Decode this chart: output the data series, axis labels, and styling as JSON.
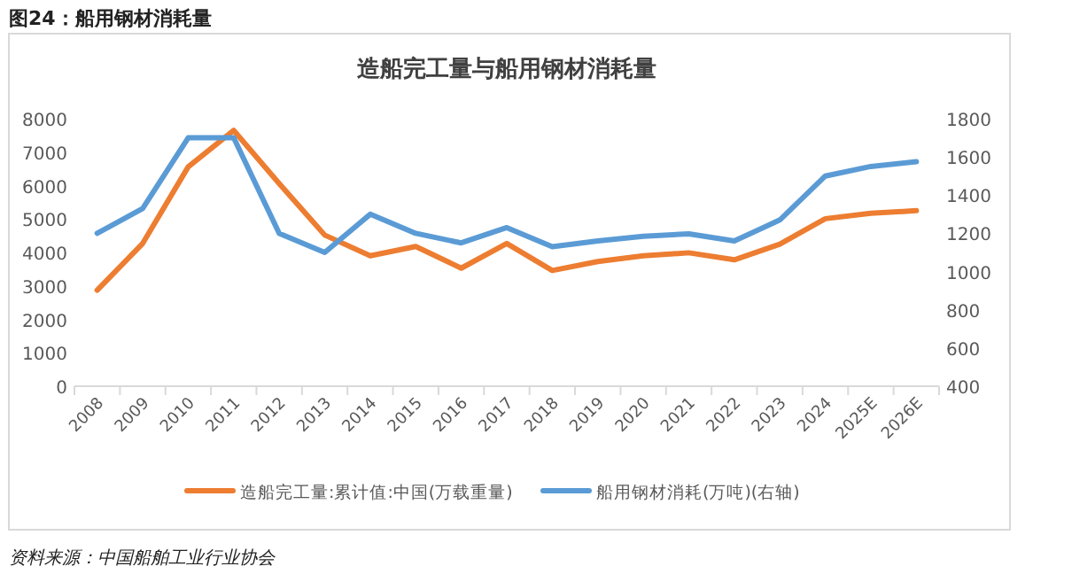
{
  "chart_data": {
    "type": "line",
    "title": "造船完工量与船用钢材消耗量",
    "subtitle": "图24：船用钢材消耗量",
    "categories": [
      "2008",
      "2009",
      "2010",
      "2011",
      "2012",
      "2013",
      "2014",
      "2015",
      "2016",
      "2017",
      "2018",
      "2019",
      "2020",
      "2021",
      "2022",
      "2023",
      "2024",
      "2025E",
      "2026E"
    ],
    "series": [
      {
        "name": "造船完工量:累计值:中国(万载重量)",
        "color": "#ed7d31",
        "values": [
          2870,
          4270,
          6560,
          7650,
          6060,
          4520,
          3900,
          4180,
          3530,
          4270,
          3460,
          3730,
          3900,
          3990,
          3780,
          4250,
          5010,
          5170,
          5250
        ]
      },
      {
        "name": "船用钢材消耗(万吨)(右轴)",
        "color": "#5b9bd5",
        "axis": "y2",
        "values": [
          1200,
          1330,
          1700,
          1700,
          1200,
          1100,
          1300,
          1200,
          1150,
          1230,
          1130,
          1160,
          1185,
          1197,
          1160,
          1270,
          1500,
          1550,
          1575
        ]
      }
    ],
    "ylim": [
      0,
      8000
    ],
    "yticks": [
      0,
      1000,
      2000,
      3000,
      4000,
      5000,
      6000,
      7000,
      8000
    ],
    "y2lim": [
      400,
      1800
    ],
    "y2ticks": [
      400,
      600,
      800,
      1000,
      1200,
      1400,
      1600,
      1800
    ],
    "legend": "bottom",
    "grid": false,
    "marker": "none",
    "line_style": "solid",
    "annotations": [
      "资料来源：中国船舶工业行业协会"
    ]
  }
}
